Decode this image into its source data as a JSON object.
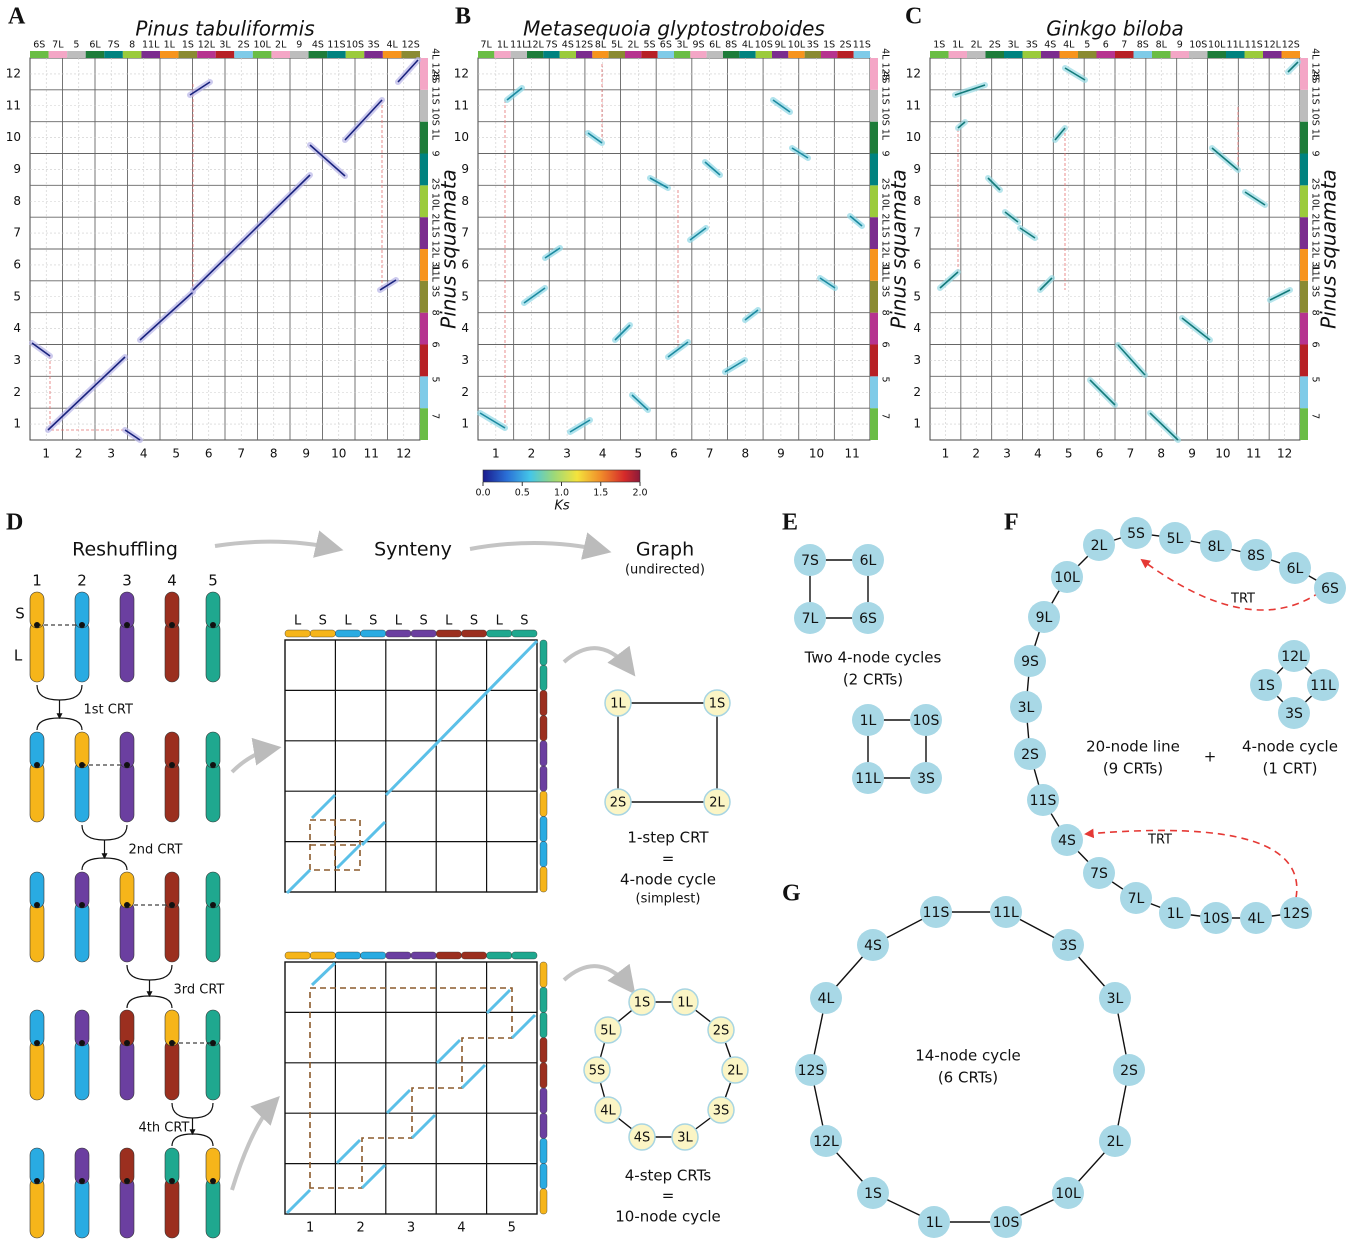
{
  "panels": {
    "A": {
      "letter": "A",
      "title": "Pinus tabuliformis",
      "top_labels": [
        "6S",
        "7L",
        "5",
        "6L",
        "7S",
        "8",
        "11L",
        "1L",
        "1S",
        "12L",
        "3L",
        "2S",
        "10L",
        "2L",
        "9",
        "4S",
        "11S",
        "10S",
        "3S",
        "4L",
        "12S"
      ],
      "x_labels": [
        "1",
        "2",
        "3",
        "4",
        "5",
        "6",
        "7",
        "8",
        "9",
        "10",
        "11",
        "12"
      ],
      "y_labels": [
        "1",
        "2",
        "3",
        "4",
        "5",
        "6",
        "7",
        "8",
        "9",
        "10",
        "11",
        "12"
      ],
      "right_labels": [
        "4L 12S",
        "4S 11S 10S 1L",
        "9",
        "2S 10L 2L",
        "1S 12L 3L",
        "11L 3S",
        "8",
        "6",
        "5",
        "7"
      ],
      "y_title": "Pinus squamata"
    },
    "B": {
      "letter": "B",
      "title": "Metasequoia glyptostroboides",
      "top_labels": [
        "7L",
        "1L",
        "11L",
        "12L",
        "7S",
        "4S",
        "12S",
        "8L",
        "5L",
        "2L",
        "5S",
        "6S",
        "3L",
        "9S",
        "6L",
        "8S",
        "4L",
        "10S",
        "9L",
        "10L",
        "3S",
        "1S",
        "2S",
        "11S"
      ],
      "x_labels": [
        "1",
        "2",
        "3",
        "4",
        "5",
        "6",
        "7",
        "8",
        "9",
        "10",
        "11"
      ],
      "y_labels": [
        "1",
        "2",
        "3",
        "4",
        "5",
        "6",
        "7",
        "8",
        "9",
        "10",
        "11",
        "12"
      ],
      "right_labels": [
        "4L 12S",
        "4S 11S 10S 1L",
        "9",
        "2S 10L 2L",
        "1S 12L 3L",
        "11L 3S",
        "8",
        "6",
        "5",
        "7"
      ],
      "y_title": "Pinus squamata",
      "colorbar": {
        "ticks": [
          "0.0",
          "0.5",
          "1.0",
          "1.5",
          "2.0"
        ],
        "label": "Ks"
      }
    },
    "C": {
      "letter": "C",
      "title": "Ginkgo biloba",
      "top_labels": [
        "1S",
        "1L",
        "2L",
        "2S",
        "3L",
        "3S",
        "4S",
        "4L",
        "5",
        "6",
        "7",
        "8S",
        "8L",
        "9",
        "10S",
        "10L",
        "11L",
        "11S",
        "12L",
        "12S"
      ],
      "x_labels": [
        "1",
        "2",
        "3",
        "4",
        "5",
        "6",
        "7",
        "8",
        "9",
        "10",
        "11",
        "12"
      ],
      "y_labels": [
        "1",
        "2",
        "3",
        "4",
        "5",
        "6",
        "7",
        "8",
        "9",
        "10",
        "11",
        "12"
      ],
      "right_labels": [
        "4L 12S",
        "4S 11S 10S 1L",
        "9",
        "2S 10L 2L",
        "1S 12L 3L",
        "11L 3S",
        "8",
        "6",
        "5",
        "7"
      ],
      "y_title": "Pinus squamata"
    },
    "D": {
      "letter": "D",
      "steps": [
        "Reshuffling",
        "Synteny",
        "Graph"
      ],
      "graph_note": "(undirected)",
      "chromosomes": [
        "1",
        "2",
        "3",
        "4",
        "5"
      ],
      "arms": [
        "S",
        "L"
      ],
      "crts": [
        "1st CRT",
        "2nd CRT",
        "3rd CRT",
        "4th CRT"
      ],
      "grid_top": [
        "L",
        "S",
        "L",
        "S",
        "L",
        "S",
        "L",
        "S",
        "L",
        "S"
      ],
      "x_labels": [
        "1",
        "2",
        "3",
        "4",
        "5"
      ],
      "graph1": {
        "nodes": [
          "1L",
          "1S",
          "2L",
          "2S"
        ],
        "caption": [
          "1-step CRT",
          "=",
          "4-node cycle",
          "(simplest)"
        ]
      },
      "graph2": {
        "nodes": [
          "1S",
          "1L",
          "2S",
          "2L",
          "3S",
          "3L",
          "4S",
          "4L",
          "5S",
          "5L"
        ],
        "caption": [
          "4-step CRTs",
          "=",
          "10-node cycle"
        ]
      }
    },
    "E": {
      "letter": "E",
      "cycle1": [
        "7S",
        "6L",
        "6S",
        "7L"
      ],
      "caption": [
        "Two 4-node cycles",
        "(2 CRTs)"
      ],
      "cycle2": [
        "1L",
        "10S",
        "3S",
        "11L"
      ]
    },
    "F": {
      "letter": "F",
      "line": [
        "6S",
        "6L",
        "8S",
        "8L",
        "5L",
        "5S",
        "2L",
        "10L",
        "9L",
        "9S",
        "3L",
        "2S",
        "11S",
        "4S",
        "7S",
        "7L",
        "1L",
        "10S",
        "4L",
        "12S"
      ],
      "trt": [
        "TRT",
        "TRT"
      ],
      "line_caption": [
        "20-node line",
        "(9 CRTs)"
      ],
      "plus": "+",
      "cycle": [
        "12L",
        "11L",
        "3S",
        "1S"
      ],
      "cycle_caption": [
        "4-node cycle",
        "(1 CRT)"
      ]
    },
    "G": {
      "letter": "G",
      "cycle": [
        "11S",
        "11L",
        "3S",
        "3L",
        "2S",
        "2L",
        "10L",
        "10S",
        "1L",
        "1S",
        "12L",
        "12S",
        "4L",
        "4S"
      ],
      "caption": [
        "14-node cycle",
        "(6 CRTs)"
      ]
    }
  }
}
